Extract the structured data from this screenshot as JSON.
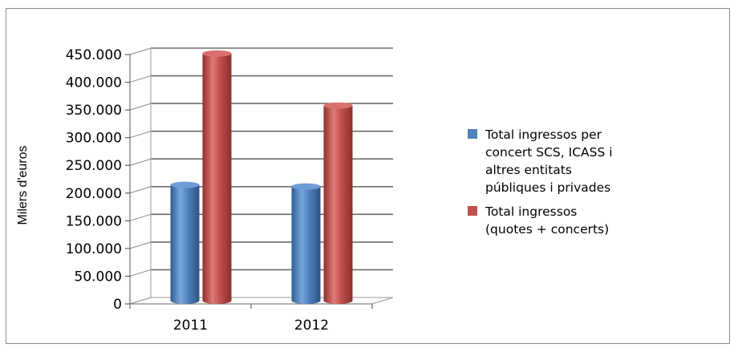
{
  "chart_data": {
    "type": "bar",
    "categories": [
      "2011",
      "2012"
    ],
    "series": [
      {
        "name": "Total ingressos per concert SCS, ICASS i altres entitats públiques i privades",
        "values": [
          209000,
          206000
        ],
        "color": "#4f81bd"
      },
      {
        "name": "Total ingressos (quotes + concerts)",
        "values": [
          446000,
          352000
        ],
        "color": "#c0504d"
      }
    ],
    "ylabel": "Milers d'euros",
    "ylim": [
      0,
      450000
    ],
    "yticks": [
      "0",
      "50.000",
      "100.000",
      "150.000",
      "200.000",
      "250.000",
      "300.000",
      "350.000",
      "400.000",
      "450.000"
    ],
    "grid": true,
    "legend_position": "right",
    "style": "3d-cylinder"
  },
  "legend": {
    "items": [
      {
        "label": "Total ingressos per\nconcert SCS, ICASS i\naltres entitats\npúbliques i privades",
        "color": "#4f81bd"
      },
      {
        "label": "Total ingressos\n(quotes + concerts)",
        "color": "#c0504d"
      }
    ]
  }
}
